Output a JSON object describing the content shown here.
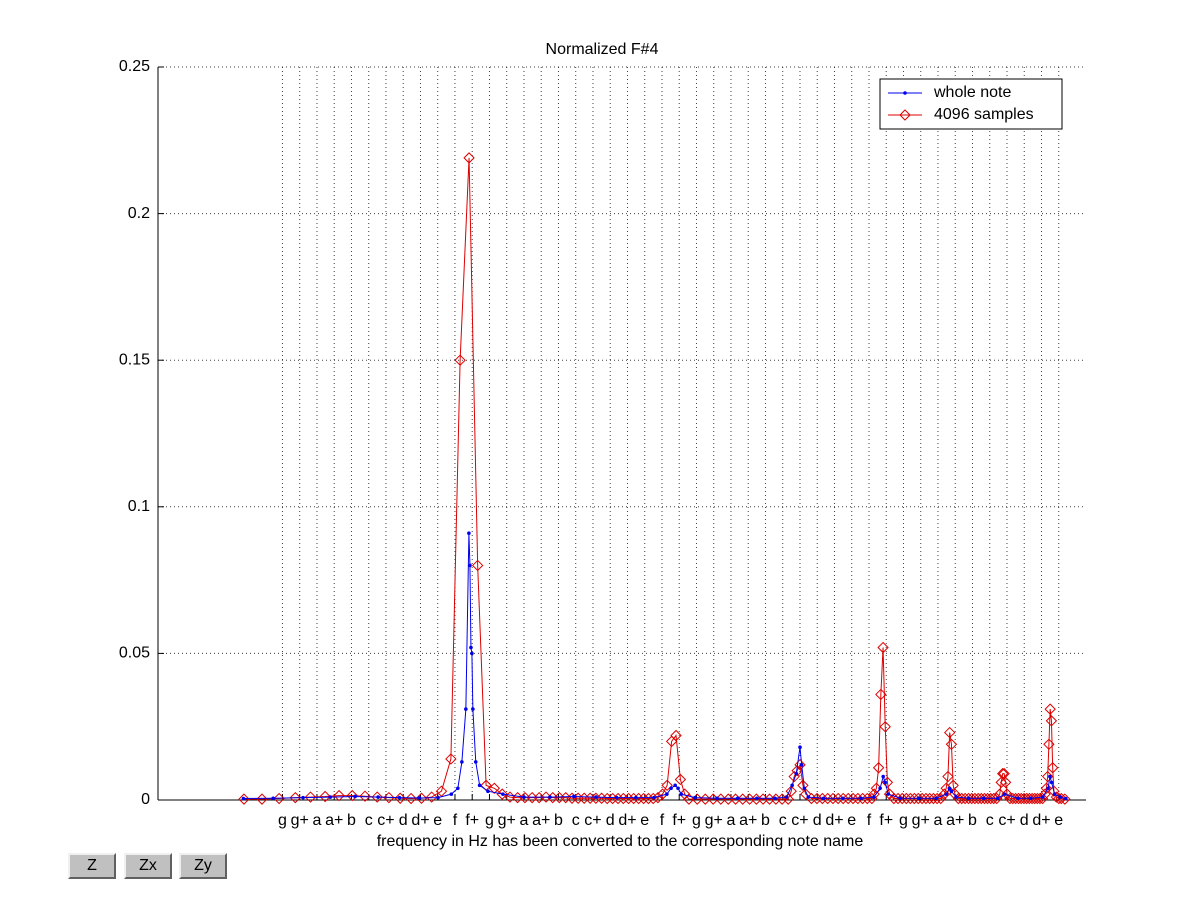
{
  "chart_data": {
    "type": "line",
    "title": "Normalized F#4",
    "xlabel": "frequency in Hz has been converted to the corresponding note name",
    "xscale": "log",
    "grid": true,
    "legend": "upper right",
    "xlim": [
      129.2,
      2889
    ],
    "ylim": [
      0,
      0.25
    ],
    "yticks": [
      0,
      0.05,
      0.1,
      0.15,
      0.2,
      0.25
    ],
    "xticks": [
      {
        "value": 196.0,
        "label": "g"
      },
      {
        "value": 207.65,
        "label": "g+"
      },
      {
        "value": 220.0,
        "label": "a"
      },
      {
        "value": 233.08,
        "label": "a+"
      },
      {
        "value": 246.94,
        "label": "b"
      },
      {
        "value": 261.63,
        "label": "c"
      },
      {
        "value": 277.18,
        "label": "c+"
      },
      {
        "value": 293.66,
        "label": "d"
      },
      {
        "value": 311.13,
        "label": "d+"
      },
      {
        "value": 329.63,
        "label": "e"
      },
      {
        "value": 349.23,
        "label": "f"
      },
      {
        "value": 369.99,
        "label": "f+"
      },
      {
        "value": 392.0,
        "label": "g"
      },
      {
        "value": 415.3,
        "label": "g+"
      },
      {
        "value": 440.0,
        "label": "a"
      },
      {
        "value": 466.16,
        "label": "a+"
      },
      {
        "value": 493.88,
        "label": "b"
      },
      {
        "value": 523.25,
        "label": "c"
      },
      {
        "value": 554.37,
        "label": "c+"
      },
      {
        "value": 587.33,
        "label": "d"
      },
      {
        "value": 622.25,
        "label": "d+"
      },
      {
        "value": 659.26,
        "label": "e"
      },
      {
        "value": 698.46,
        "label": "f"
      },
      {
        "value": 739.99,
        "label": "f+"
      },
      {
        "value": 783.99,
        "label": "g"
      },
      {
        "value": 830.61,
        "label": "g+"
      },
      {
        "value": 880.0,
        "label": "a"
      },
      {
        "value": 932.33,
        "label": "a+"
      },
      {
        "value": 987.77,
        "label": "b"
      },
      {
        "value": 1046.5,
        "label": "c"
      },
      {
        "value": 1108.73,
        "label": "c+"
      },
      {
        "value": 1174.66,
        "label": "d"
      },
      {
        "value": 1244.51,
        "label": "d+"
      },
      {
        "value": 1318.51,
        "label": "e"
      },
      {
        "value": 1396.91,
        "label": "f"
      },
      {
        "value": 1479.98,
        "label": "f+"
      },
      {
        "value": 1567.98,
        "label": "g"
      },
      {
        "value": 1661.22,
        "label": "g+"
      },
      {
        "value": 1760.0,
        "label": "a"
      },
      {
        "value": 1864.66,
        "label": "a+"
      },
      {
        "value": 1975.53,
        "label": "b"
      },
      {
        "value": 2093.0,
        "label": "c"
      },
      {
        "value": 2217.46,
        "label": "c+"
      },
      {
        "value": 2349.32,
        "label": "d"
      },
      {
        "value": 2489.02,
        "label": "d+"
      },
      {
        "value": 2637.02,
        "label": "e"
      }
    ],
    "series": [
      {
        "name": "whole note",
        "color": "#0000ee",
        "marker": "dot",
        "x": [
          172,
          190,
          210,
          230,
          250,
          270,
          290,
          310,
          330,
          345,
          352.6,
          357.4,
          362.2,
          365.9,
          367.2,
          368.4,
          369.6,
          370.8,
          374.4,
          379.3,
          390,
          410,
          440,
          480,
          520,
          560,
          600,
          640,
          680,
          710,
          720,
          730,
          737,
          745,
          780,
          840,
          900,
          960,
          1020,
          1060,
          1080,
          1095,
          1108.8,
          1115,
          1125,
          1140,
          1200,
          1280,
          1360,
          1420,
          1450,
          1465,
          1475,
          1490,
          1550,
          1650,
          1750,
          1810,
          1828,
          1840,
          1870,
          1950,
          2050,
          2150,
          2200,
          2300,
          2400,
          2500,
          2545,
          2560,
          2575,
          2600,
          2650,
          2700
        ],
        "values": [
          0.0005,
          0.0006,
          0.0008,
          0.001,
          0.0012,
          0.001,
          0.0008,
          0.0007,
          0.0008,
          0.002,
          0.004,
          0.013,
          0.031,
          0.091,
          0.08,
          0.052,
          0.05,
          0.031,
          0.013,
          0.005,
          0.003,
          0.002,
          0.001,
          0.001,
          0.0012,
          0.001,
          0.0008,
          0.0008,
          0.0008,
          0.002,
          0.004,
          0.005,
          0.004,
          0.002,
          0.0008,
          0.0006,
          0.0006,
          0.0006,
          0.0006,
          0.001,
          0.005,
          0.009,
          0.018,
          0.012,
          0.004,
          0.001,
          0.0006,
          0.0006,
          0.0006,
          0.001,
          0.004,
          0.008,
          0.006,
          0.002,
          0.0006,
          0.0006,
          0.0006,
          0.002,
          0.004,
          0.003,
          0.001,
          0.0006,
          0.0006,
          0.0006,
          0.002,
          0.0006,
          0.0006,
          0.001,
          0.004,
          0.008,
          0.006,
          0.002,
          0.001,
          0.0005
        ]
      },
      {
        "name": "4096 samples",
        "color": "#dd0000",
        "marker": "diamond",
        "x": [
          172.3,
          183.0,
          193.8,
          204.6,
          215.3,
          226.1,
          236.9,
          247.6,
          258.4,
          269.2,
          279.9,
          290.7,
          301.5,
          312.2,
          323.0,
          333.8,
          344.5,
          355.3,
          366.1,
          376.8,
          387.6,
          398.4,
          409.1,
          419.9,
          430.7,
          441.4,
          452.2,
          463.0,
          473.7,
          484.5,
          495.3,
          506.0,
          516.8,
          527.5,
          538.3,
          549.1,
          559.8,
          570.6,
          581.4,
          592.1,
          602.9,
          613.7,
          624.5,
          635.2,
          646.0,
          656.8,
          667.5,
          678.3,
          689.0,
          699.8,
          710.6,
          721.4,
          732.1,
          742.9,
          753.7,
          764.4,
          786.0,
          807.5,
          829.0,
          850.6,
          872.1,
          893.6,
          915.2,
          936.7,
          958.2,
          979.8,
          1001.3,
          1022.8,
          1044.4,
          1065.9,
          1076.7,
          1087.4,
          1098.2,
          1109.0,
          1119.7,
          1130.5,
          1152.0,
          1173.6,
          1195.1,
          1216.6,
          1238.2,
          1259.7,
          1281.2,
          1302.8,
          1324.3,
          1345.8,
          1367.4,
          1388.9,
          1410.4,
          1421.2,
          1431.9,
          1442.7,
          1453.5,
          1464.3,
          1475.0,
          1485.8,
          1496.5,
          1518.1,
          1539.6,
          1561.2,
          1582.7,
          1604.2,
          1625.8,
          1647.3,
          1668.8,
          1690.4,
          1711.9,
          1733.4,
          1755.0,
          1776.5,
          1798.0,
          1808.8,
          1819.6,
          1830.3,
          1841.1,
          1851.9,
          1862.6,
          1884.2,
          1905.7,
          1927.2,
          1948.8,
          1970.3,
          1991.8,
          2013.4,
          2034.9,
          2056.4,
          2078.0,
          2099.5,
          2121.0,
          2142.6,
          2164.1,
          2174.9,
          2185.6,
          2196.4,
          2207.1,
          2217.9,
          2239.5,
          2261.0,
          2282.5,
          2304.1,
          2325.6,
          2347.1,
          2368.7,
          2390.2,
          2411.7,
          2433.3,
          2454.8,
          2476.3,
          2497.9,
          2519.4,
          2530.1,
          2540.9,
          2551.7,
          2562.4,
          2573.2,
          2584.0,
          2594.7,
          2616.3,
          2637.8,
          2659.3,
          2691.6
        ],
        "values": [
          0.0003,
          0.0003,
          0.0005,
          0.0008,
          0.001,
          0.0012,
          0.0015,
          0.0015,
          0.0013,
          0.001,
          0.0008,
          0.0006,
          0.0005,
          0.0006,
          0.001,
          0.003,
          0.014,
          0.15,
          0.219,
          0.08,
          0.005,
          0.004,
          0.002,
          0.001,
          0.0008,
          0.0008,
          0.0008,
          0.0008,
          0.001,
          0.0008,
          0.0008,
          0.0008,
          0.0006,
          0.0006,
          0.0006,
          0.0006,
          0.0006,
          0.0006,
          0.0005,
          0.0005,
          0.0005,
          0.0005,
          0.0005,
          0.0005,
          0.0005,
          0.0005,
          0.0005,
          0.0005,
          0.0008,
          0.002,
          0.005,
          0.02,
          0.022,
          0.007,
          0.002,
          0.0003,
          0.0003,
          0.0003,
          0.0003,
          0.0003,
          0.0003,
          0.0003,
          0.0003,
          0.0003,
          0.0003,
          0.0003,
          0.0003,
          0.0003,
          0.0003,
          0.0003,
          0.003,
          0.008,
          0.01,
          0.012,
          0.005,
          0.002,
          0.0005,
          0.0005,
          0.0005,
          0.0005,
          0.0005,
          0.0005,
          0.0005,
          0.0005,
          0.0005,
          0.0005,
          0.0005,
          0.0005,
          0.0005,
          0.002,
          0.004,
          0.011,
          0.036,
          0.052,
          0.025,
          0.006,
          0.002,
          0.0005,
          0.0005,
          0.0005,
          0.0005,
          0.0005,
          0.0005,
          0.0005,
          0.0005,
          0.0005,
          0.0005,
          0.0005,
          0.0005,
          0.0005,
          0.002,
          0.004,
          0.008,
          0.023,
          0.019,
          0.005,
          0.002,
          0.0005,
          0.0005,
          0.0005,
          0.0005,
          0.0005,
          0.0005,
          0.0005,
          0.0005,
          0.0005,
          0.0005,
          0.0005,
          0.0005,
          0.0005,
          0.002,
          0.006,
          0.009,
          0.009,
          0.006,
          0.002,
          0.0005,
          0.0005,
          0.0005,
          0.0005,
          0.0005,
          0.0005,
          0.0005,
          0.0005,
          0.0005,
          0.0005,
          0.0005,
          0.0005,
          0.0005,
          0.002,
          0.004,
          0.008,
          0.019,
          0.031,
          0.027,
          0.011,
          0.003,
          0.001,
          0.0005,
          0.0005,
          0.0003
        ]
      }
    ]
  },
  "toolbar": {
    "buttons": [
      "Z",
      "Zx",
      "Zy"
    ]
  }
}
